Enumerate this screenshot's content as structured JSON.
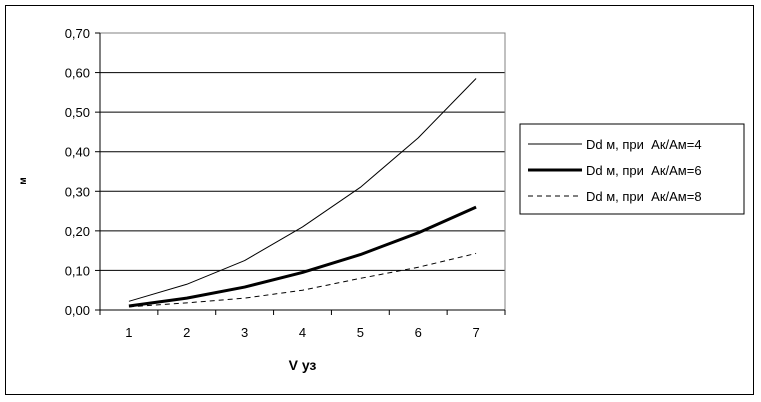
{
  "chart_data": {
    "type": "line",
    "title": "",
    "xlabel": "V уз",
    "ylabel": "м",
    "x": [
      1,
      2,
      3,
      4,
      5,
      6,
      7
    ],
    "x_ticks": [
      "1",
      "2",
      "3",
      "4",
      "5",
      "6",
      "7"
    ],
    "ylim": [
      0,
      0.7
    ],
    "y_ticks": [
      "0,00",
      "0,10",
      "0,20",
      "0,30",
      "0,40",
      "0,50",
      "0,60",
      "0,70"
    ],
    "grid": "horizontal",
    "legend_position": "right",
    "series": [
      {
        "name": "Dd м, при  Ак/Ам=4",
        "values": [
          0.022,
          0.065,
          0.125,
          0.21,
          0.31,
          0.435,
          0.585
        ],
        "style": "thin",
        "color": "#000000"
      },
      {
        "name": "Dd м, при  Ак/Ам=6",
        "values": [
          0.01,
          0.03,
          0.058,
          0.095,
          0.14,
          0.195,
          0.26
        ],
        "style": "thick",
        "color": "#000000"
      },
      {
        "name": "Dd м, при  Ак/Ам=8",
        "values": [
          0.008,
          0.018,
          0.03,
          0.05,
          0.08,
          0.108,
          0.143
        ],
        "style": "dashed",
        "color": "#000000"
      }
    ]
  }
}
